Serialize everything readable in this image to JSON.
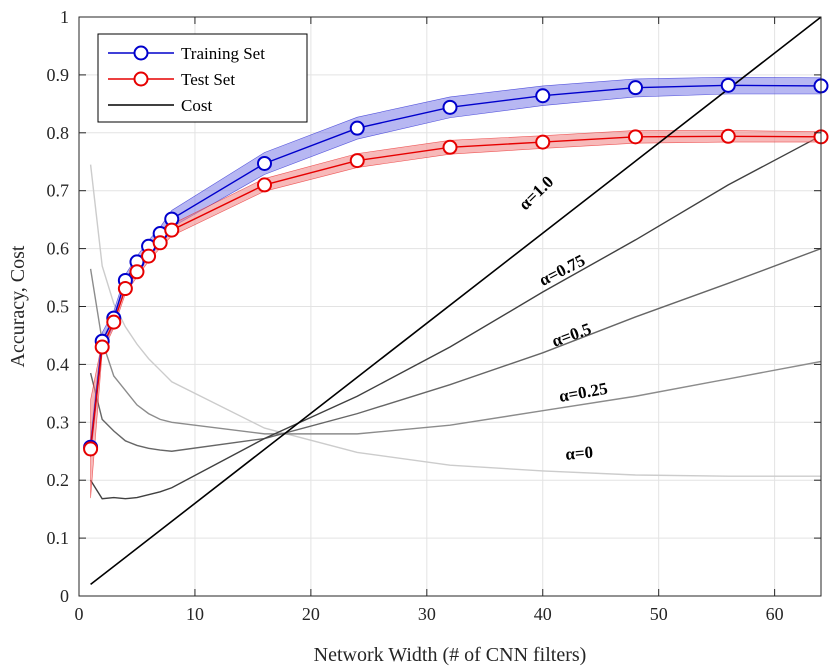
{
  "chart_data": {
    "type": "line",
    "xlabel": "Network Width (# of CNN filters)",
    "ylabel": "Accuracy, Cost",
    "xlim": [
      0,
      64
    ],
    "ylim": [
      0,
      1
    ],
    "xticks": [
      0,
      10,
      20,
      30,
      40,
      50,
      60
    ],
    "yticks": [
      0,
      0.1,
      0.2,
      0.3,
      0.4,
      0.5,
      0.6,
      0.7,
      0.8,
      0.9,
      1
    ],
    "grid": true,
    "legend_position": "top-left",
    "series": [
      {
        "name": "Training Set",
        "color": "#0000cc",
        "band_color": "#7c7ce8",
        "marker": "circle",
        "x": [
          1,
          2,
          3,
          4,
          5,
          6,
          7,
          8,
          16,
          24,
          32,
          40,
          48,
          56,
          64
        ],
        "values": [
          0.257,
          0.44,
          0.48,
          0.545,
          0.577,
          0.604,
          0.626,
          0.651,
          0.747,
          0.808,
          0.844,
          0.864,
          0.878,
          0.882,
          0.881
        ],
        "lower": [
          0.24,
          0.425,
          0.468,
          0.535,
          0.568,
          0.594,
          0.615,
          0.637,
          0.728,
          0.789,
          0.826,
          0.847,
          0.862,
          0.867,
          0.867
        ],
        "upper": [
          0.273,
          0.455,
          0.492,
          0.555,
          0.587,
          0.614,
          0.637,
          0.666,
          0.766,
          0.827,
          0.862,
          0.881,
          0.893,
          0.896,
          0.895
        ]
      },
      {
        "name": "Test Set",
        "color": "#e60000",
        "band_color": "#f08080",
        "marker": "circle",
        "x": [
          1,
          2,
          3,
          4,
          5,
          6,
          7,
          8,
          16,
          24,
          32,
          40,
          48,
          56,
          64
        ],
        "values": [
          0.254,
          0.43,
          0.473,
          0.531,
          0.56,
          0.587,
          0.61,
          0.632,
          0.71,
          0.752,
          0.775,
          0.784,
          0.793,
          0.794,
          0.793
        ],
        "lower": [
          0.169,
          0.42,
          0.463,
          0.522,
          0.551,
          0.578,
          0.601,
          0.622,
          0.699,
          0.74,
          0.763,
          0.773,
          0.782,
          0.784,
          0.784
        ],
        "upper": [
          0.339,
          0.44,
          0.483,
          0.54,
          0.569,
          0.596,
          0.619,
          0.642,
          0.721,
          0.764,
          0.787,
          0.795,
          0.804,
          0.804,
          0.802
        ]
      },
      {
        "name": "Cost",
        "color": "#000000",
        "marker": "none",
        "x": [
          1,
          64
        ],
        "values": [
          0.02,
          1.0
        ]
      }
    ],
    "alpha_curves": [
      {
        "label": "α=0",
        "color": "#cccccc",
        "label_at": [
          42,
          0.235
        ],
        "x": [
          1,
          2,
          3,
          4,
          5,
          6,
          7,
          8,
          16,
          24,
          32,
          40,
          48,
          56,
          64
        ],
        "values": [
          0.745,
          0.57,
          0.505,
          0.465,
          0.435,
          0.41,
          0.39,
          0.37,
          0.29,
          0.248,
          0.226,
          0.216,
          0.209,
          0.207,
          0.207
        ]
      },
      {
        "label": "α=0.25",
        "color": "#8c8c8c",
        "label_at": [
          41.5,
          0.335
        ],
        "x": [
          1,
          2,
          3,
          4,
          5,
          6,
          7,
          8,
          16,
          24,
          32,
          40,
          48,
          56,
          64
        ],
        "values": [
          0.565,
          0.44,
          0.38,
          0.355,
          0.33,
          0.315,
          0.305,
          0.3,
          0.28,
          0.28,
          0.295,
          0.32,
          0.345,
          0.375,
          0.405
        ]
      },
      {
        "label": "α=0.5",
        "color": "#666666",
        "label_at": [
          41,
          0.43
        ],
        "x": [
          1,
          2,
          3,
          4,
          5,
          6,
          7,
          8,
          16,
          24,
          32,
          40,
          48,
          56,
          64
        ],
        "values": [
          0.385,
          0.305,
          0.285,
          0.268,
          0.26,
          0.255,
          0.252,
          0.25,
          0.272,
          0.315,
          0.365,
          0.42,
          0.482,
          0.54,
          0.6
        ]
      },
      {
        "label": "α=0.75",
        "color": "#404040",
        "label_at": [
          40,
          0.535
        ],
        "x": [
          1,
          2,
          3,
          4,
          5,
          6,
          7,
          8,
          16,
          24,
          32,
          40,
          48,
          56,
          64
        ],
        "values": [
          0.2,
          0.168,
          0.17,
          0.168,
          0.17,
          0.175,
          0.18,
          0.187,
          0.272,
          0.345,
          0.43,
          0.525,
          0.615,
          0.71,
          0.795
        ]
      },
      {
        "label": "α=1.0",
        "color": "#000000",
        "label_at": [
          38.5,
          0.665
        ],
        "x": [],
        "values": []
      }
    ]
  }
}
